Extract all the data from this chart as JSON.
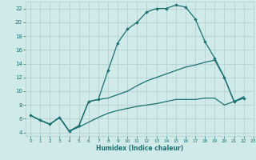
{
  "xlabel": "Humidex (Indice chaleur)",
  "xlim": [
    -0.5,
    23
  ],
  "ylim": [
    3.5,
    23
  ],
  "xticks": [
    0,
    1,
    2,
    3,
    4,
    5,
    6,
    7,
    8,
    9,
    10,
    11,
    12,
    13,
    14,
    15,
    16,
    17,
    18,
    19,
    20,
    21,
    22,
    23
  ],
  "yticks": [
    4,
    6,
    8,
    10,
    12,
    14,
    16,
    18,
    20,
    22
  ],
  "bg_color": "#d0eaea",
  "grid_color": "#b0cccc",
  "line_color": "#1a7070",
  "line1_x": [
    0,
    1,
    2,
    3,
    4,
    5,
    6,
    7,
    8,
    9,
    10,
    11,
    12,
    13,
    14,
    15,
    16,
    17,
    18,
    19,
    20,
    21,
    22
  ],
  "line1_y": [
    6.5,
    5.8,
    5.2,
    6.2,
    4.2,
    5.0,
    8.5,
    8.8,
    13.0,
    17.0,
    19.0,
    20.0,
    21.5,
    22.0,
    22.0,
    22.5,
    22.2,
    20.5,
    17.2,
    14.8,
    12.0,
    8.5,
    9.0
  ],
  "line2_x": [
    0,
    1,
    2,
    3,
    4,
    5,
    6,
    7,
    8,
    9,
    10,
    11,
    12,
    13,
    14,
    15,
    16,
    17,
    18,
    19,
    20,
    21,
    22
  ],
  "line2_y": [
    6.5,
    5.8,
    5.2,
    6.2,
    4.2,
    5.0,
    8.5,
    8.8,
    9.0,
    9.5,
    10.0,
    10.8,
    11.5,
    12.0,
    12.5,
    13.0,
    13.5,
    13.8,
    14.2,
    14.5,
    12.0,
    8.5,
    9.0
  ],
  "line3_x": [
    0,
    1,
    2,
    3,
    4,
    5,
    6,
    7,
    8,
    9,
    10,
    11,
    12,
    13,
    14,
    15,
    16,
    17,
    18,
    19,
    20,
    21,
    22
  ],
  "line3_y": [
    6.5,
    5.8,
    5.2,
    6.2,
    4.2,
    4.8,
    5.5,
    6.2,
    6.8,
    7.2,
    7.5,
    7.8,
    8.0,
    8.2,
    8.5,
    8.8,
    8.8,
    8.8,
    9.0,
    9.0,
    8.0,
    8.5,
    9.2
  ]
}
